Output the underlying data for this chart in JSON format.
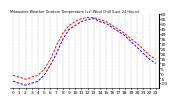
{
  "title": "Milwaukee Weather Outdoor Temperature (vs) Wind Chill (Last 24 Hours)",
  "outdoor_temp": [
    -2,
    -4,
    -6,
    -4,
    -2,
    4,
    14,
    28,
    40,
    48,
    52,
    55,
    56,
    56,
    54,
    52,
    48,
    44,
    40,
    35,
    30,
    24,
    18,
    14
  ],
  "wind_chill": [
    -8,
    -10,
    -12,
    -10,
    -8,
    -2,
    8,
    20,
    34,
    44,
    48,
    52,
    54,
    55,
    52,
    50,
    46,
    42,
    38,
    32,
    26,
    20,
    14,
    10
  ],
  "hours": [
    0,
    1,
    2,
    3,
    4,
    5,
    6,
    7,
    8,
    9,
    10,
    11,
    12,
    13,
    14,
    15,
    16,
    17,
    18,
    19,
    20,
    21,
    22,
    23
  ],
  "xlabels": [
    "0",
    "1",
    "2",
    "3",
    "4",
    "5",
    "6",
    "7",
    "8",
    "9",
    "10",
    "11",
    "12",
    "13",
    "14",
    "15",
    "16",
    "17",
    "18",
    "19",
    "20",
    "21",
    "22",
    "23"
  ],
  "ylim": [
    -15,
    60
  ],
  "ytick_values": [
    -10,
    -5,
    0,
    5,
    10,
    15,
    20,
    25,
    30,
    35,
    40,
    45,
    50,
    55,
    60
  ],
  "ytick_labels": [
    "-10",
    "-5",
    "0",
    "5",
    "10",
    "15",
    "20",
    "25",
    "30",
    "35",
    "40",
    "45",
    "50",
    "55",
    "60"
  ],
  "temp_color": "#ff0000",
  "chill_color": "#0000ff",
  "grid_color": "#888888",
  "bg_color": "#ffffff",
  "plot_bg": "#ffffff",
  "line_width": 0.7,
  "font_size": 3.2,
  "title_fontsize": 2.5
}
